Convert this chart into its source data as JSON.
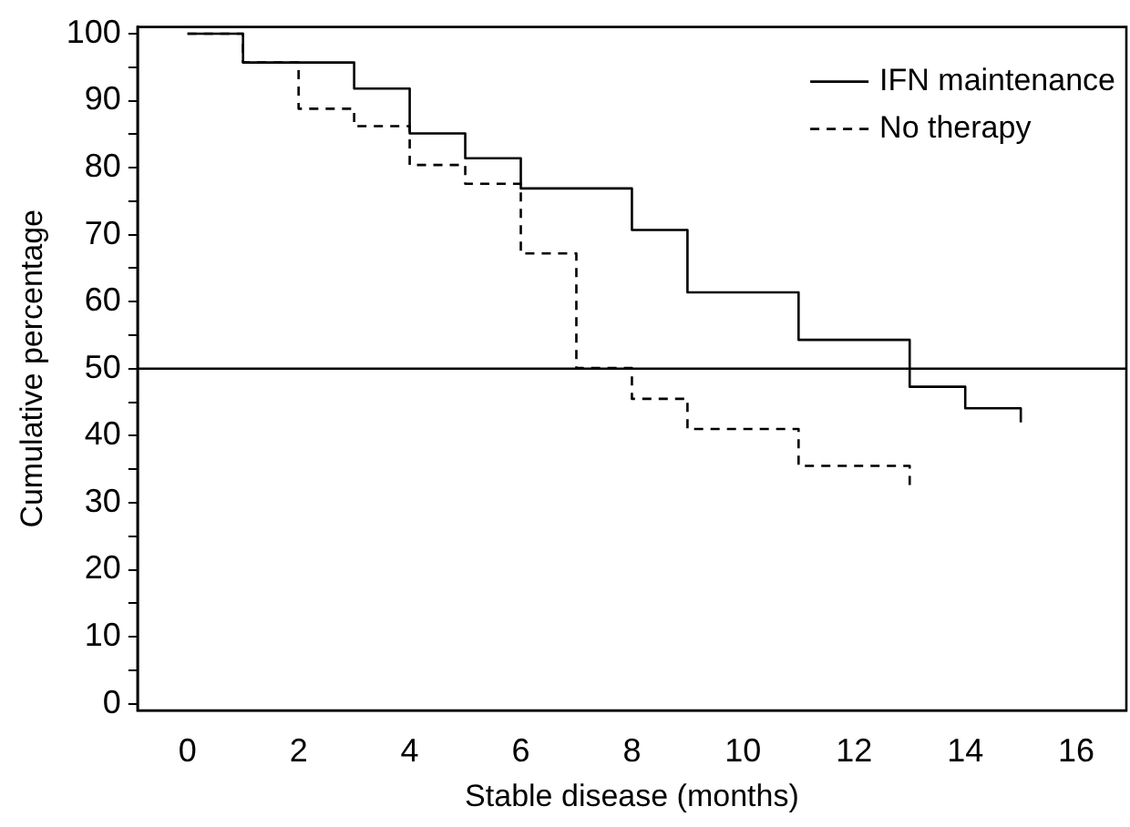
{
  "chart_data": {
    "type": "step",
    "xlabel": "Stable disease (months)",
    "ylabel": "Cumulative percentage",
    "series": [
      {
        "name": "IFN maintenance",
        "color": "#000000",
        "line_style": "solid",
        "x": [
          0,
          1,
          3,
          4,
          5,
          6,
          8,
          9,
          11,
          13,
          14,
          15,
          15
        ],
        "values": [
          100,
          95.7,
          91.8,
          85.1,
          81.4,
          76.9,
          70.7,
          61.4,
          54.3,
          47.3,
          44.1,
          44.1,
          42
        ]
      },
      {
        "name": "No therapy",
        "color": "#000000",
        "line_style": "dashed",
        "x": [
          0,
          1,
          2,
          3,
          4,
          5,
          6,
          7,
          8,
          9,
          11,
          13,
          13
        ],
        "values": [
          100,
          95.7,
          88.8,
          86.2,
          80.4,
          77.6,
          67.2,
          50.1,
          45.5,
          41.0,
          35.5,
          35.5,
          31.9
        ]
      }
    ],
    "xlim": [
      -0.9,
      16.9
    ],
    "xticks": [
      0,
      2,
      4,
      6,
      8,
      10,
      12,
      14,
      16
    ],
    "ylim": [
      -1,
      101
    ],
    "yticks": [
      0,
      {
        "value": 5,
        "label": null
      },
      10,
      {
        "value": 15,
        "label": null
      },
      20,
      {
        "value": 25,
        "label": null
      },
      30,
      {
        "value": 35,
        "label": null
      },
      40,
      {
        "value": 45,
        "label": null
      },
      50,
      {
        "value": 55,
        "label": null
      },
      60,
      {
        "value": 65,
        "label": null
      },
      70,
      {
        "value": 75,
        "label": null
      },
      80,
      {
        "value": 85,
        "label": null
      },
      90,
      {
        "value": 95,
        "label": null
      },
      100
    ],
    "ref_lines": [
      {
        "axis": "y",
        "value": 50,
        "color": "#000000"
      }
    ],
    "grid": false,
    "legend": "top right",
    "marker": "none"
  }
}
